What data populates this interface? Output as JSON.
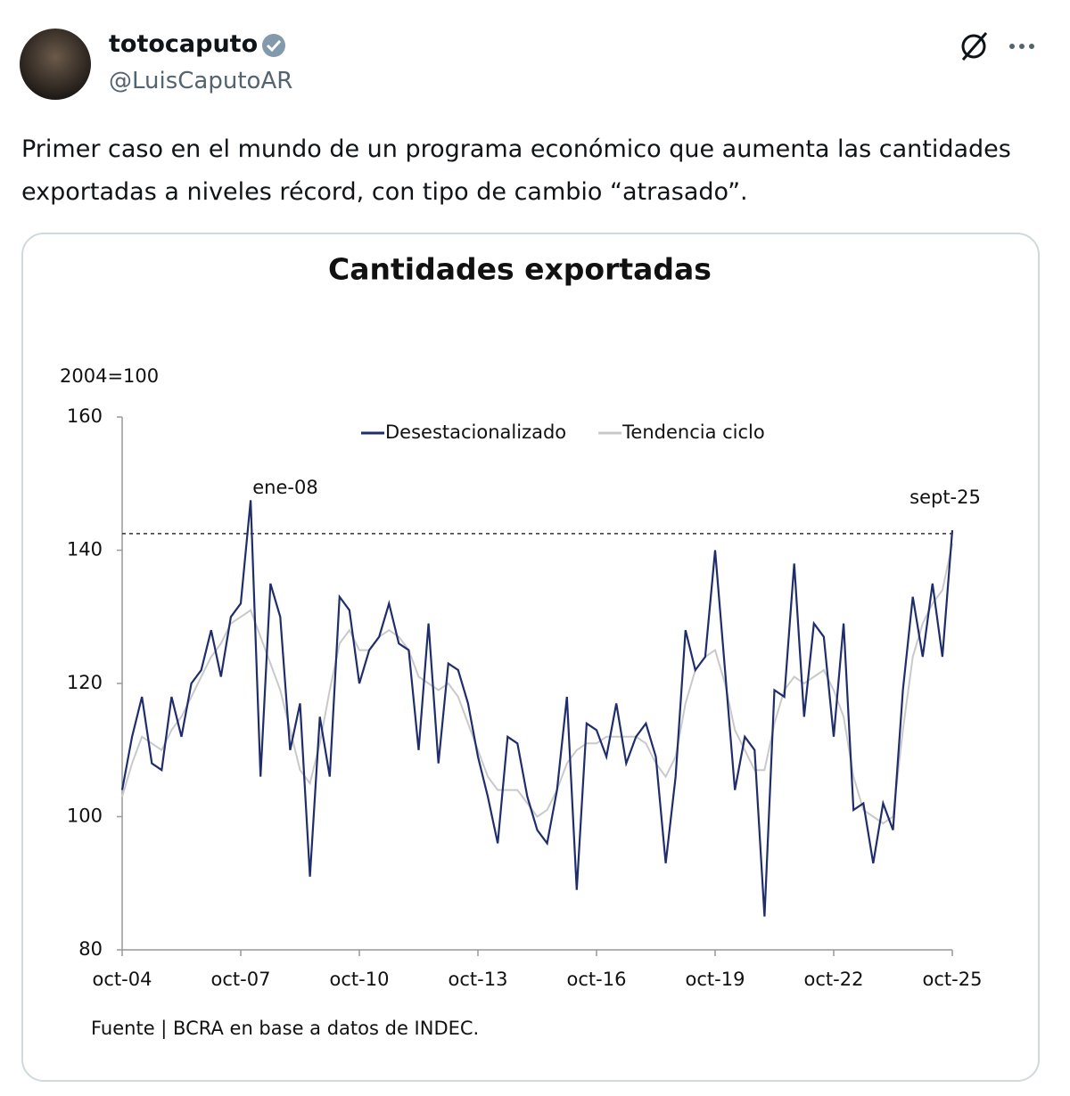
{
  "user": {
    "name": "totocaputo",
    "handle": "@LuisCaputoAR"
  },
  "tweet": {
    "text": "Primer caso en el mundo de un programa económico que aumenta las cantidades exportadas a niveles récord, con tipo de cambio “atrasado”."
  },
  "chart_data": {
    "type": "line",
    "title": "Cantidades exportadas",
    "y_label": "2004=100",
    "categories": [
      "oct-04",
      null,
      null,
      null,
      null,
      null,
      null,
      null,
      null,
      null,
      null,
      null,
      "oct-07",
      null,
      null,
      null,
      null,
      null,
      null,
      null,
      null,
      null,
      null,
      null,
      "oct-10",
      null,
      null,
      null,
      null,
      null,
      null,
      null,
      null,
      null,
      null,
      null,
      "oct-13",
      null,
      null,
      null,
      null,
      null,
      null,
      null,
      null,
      null,
      null,
      null,
      "oct-16",
      null,
      null,
      null,
      null,
      null,
      null,
      null,
      null,
      null,
      null,
      null,
      "oct-19",
      null,
      null,
      null,
      null,
      null,
      null,
      null,
      null,
      null,
      null,
      null,
      "oct-22",
      null,
      null,
      null,
      null,
      null,
      null,
      null,
      null,
      null,
      null,
      null,
      "oct-25"
    ],
    "series": [
      {
        "name": "Desestacionalizado",
        "color": "#1f2d6b",
        "values": [
          104,
          112,
          118,
          108,
          107,
          118,
          112,
          120,
          122,
          128,
          121,
          130,
          132,
          147.5,
          106,
          135,
          130,
          110,
          117,
          91,
          115,
          106,
          133,
          131,
          120,
          125,
          127,
          132,
          126,
          125,
          110,
          129,
          108,
          123,
          122,
          117,
          109,
          103,
          96,
          112,
          111,
          103,
          98,
          96,
          104,
          118,
          89,
          114,
          113,
          109,
          117,
          108,
          112,
          114,
          109,
          93,
          106,
          128,
          122,
          124,
          140,
          122,
          104,
          112,
          110,
          85,
          119,
          118,
          138,
          115,
          129,
          127,
          112,
          129,
          101,
          102,
          93,
          102,
          98,
          119,
          133,
          124,
          135,
          124,
          143
        ]
      },
      {
        "name": "Tendencia ciclo",
        "color": "#c9c9c9",
        "values": [
          103,
          108,
          112,
          111,
          110,
          113,
          115,
          118,
          121,
          124,
          126,
          129,
          130,
          131,
          127,
          123,
          119,
          113,
          107,
          105,
          111,
          119,
          126,
          128,
          125,
          125,
          127,
          128,
          127,
          125,
          121,
          120,
          119,
          120,
          118,
          114,
          110,
          106,
          104,
          104,
          104,
          102,
          100,
          101,
          104,
          108,
          110,
          111,
          111,
          112,
          112,
          112,
          112,
          111,
          108,
          106,
          109,
          117,
          122,
          124,
          125,
          120,
          113,
          110,
          107,
          107,
          114,
          119,
          121,
          120,
          121,
          122,
          119,
          115,
          106,
          101,
          100,
          99,
          100,
          113,
          124,
          129,
          132,
          134,
          141
        ]
      }
    ],
    "ylim": [
      80,
      160
    ],
    "yticks": [
      80,
      100,
      120,
      140,
      160
    ],
    "reference_line": 142.5,
    "annotations": [
      "ene-08",
      "sept-25"
    ],
    "legend": "top",
    "source": "Fuente | BCRA en base a datos de INDEC."
  }
}
